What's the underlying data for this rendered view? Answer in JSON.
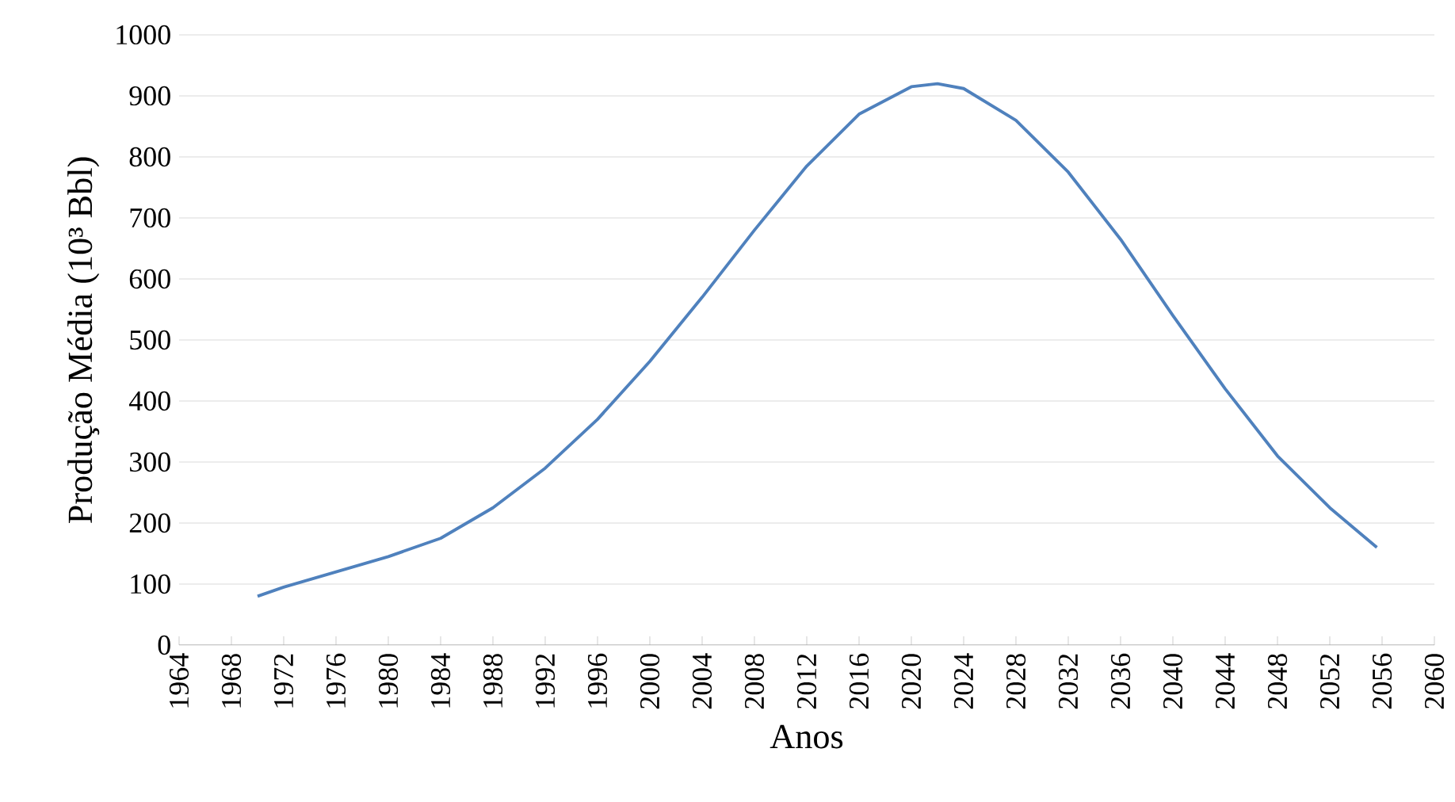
{
  "chart_data": {
    "type": "line",
    "xlabel": "Anos",
    "ylabel": "Produção Média (10³ Bbl)",
    "x": [
      1970,
      1972,
      1976,
      1980,
      1984,
      1988,
      1992,
      1996,
      2000,
      2004,
      2008,
      2012,
      2016,
      2020,
      2022,
      2024,
      2028,
      2032,
      2036,
      2040,
      2044,
      2048,
      2052,
      2055.6
    ],
    "series": [
      {
        "color": "#4f81bd",
        "values": [
          80,
          95,
          120,
          145,
          175,
          225,
          290,
          370,
          465,
          570,
          680,
          785,
          870,
          915,
          920,
          912,
          860,
          775,
          665,
          540,
          420,
          310,
          225,
          160
        ]
      }
    ],
    "xlim": [
      1964,
      2060
    ],
    "xticks": [
      1964,
      1968,
      1972,
      1976,
      1980,
      1984,
      1988,
      1992,
      1996,
      2000,
      2004,
      2008,
      2012,
      2016,
      2020,
      2024,
      2028,
      2032,
      2036,
      2040,
      2044,
      2048,
      2052,
      2056,
      2060
    ],
    "ylim": [
      0,
      1000
    ],
    "yticks": [
      0,
      100,
      200,
      300,
      400,
      500,
      600,
      700,
      800,
      900,
      1000
    ],
    "grid": "y",
    "marker": "none",
    "line_style": "solid"
  }
}
